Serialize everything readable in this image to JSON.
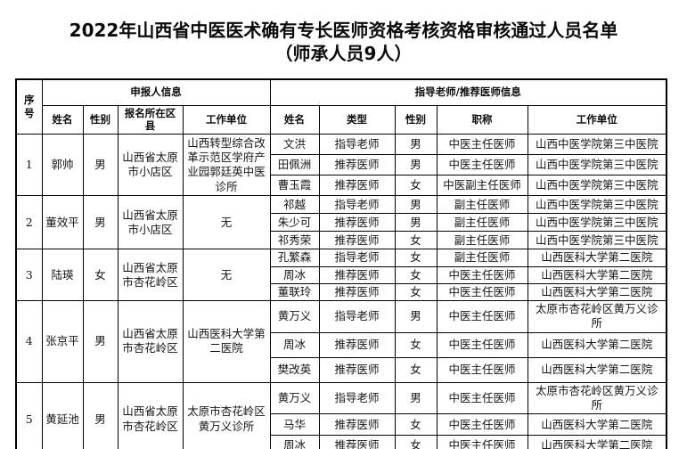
{
  "page": {
    "title_line1": "2022年山西省中医医术确有专长医师资格考核资格审核通过人员名单",
    "title_line2": "（师承人员9人）"
  },
  "table": {
    "headers": {
      "index": "序号",
      "applicant_group": "申报人信息",
      "mentor_group": "指导老师/推荐医师信息",
      "applicant_name": "姓名",
      "applicant_gender": "性别",
      "applicant_district": "报名所在区县",
      "applicant_workplace": "工作单位",
      "mentor_name": "姓名",
      "mentor_type": "类型",
      "mentor_gender": "性别",
      "mentor_title": "职称",
      "mentor_workplace": "工作单位"
    },
    "people": [
      {
        "index": "1",
        "name": "郭帅",
        "gender": "男",
        "district": "山西省太原市小店区",
        "workplace": "山西转型综合改革示范区学府产业园郭廷英中医诊所",
        "mentors": [
          {
            "name": "文洪",
            "type": "指导老师",
            "gender": "男",
            "title": "中医主任医师",
            "workplace": "山西中医学院第三中医院"
          },
          {
            "name": "田佩洲",
            "type": "推荐医师",
            "gender": "男",
            "title": "中医主任医师",
            "workplace": "山西中医学院第三中医院"
          },
          {
            "name": "曹玉霞",
            "type": "推荐医师",
            "gender": "女",
            "title": "中医副主任医师",
            "workplace": "山西中医学院第三中医院"
          }
        ]
      },
      {
        "index": "2",
        "name": "董效平",
        "gender": "男",
        "district": "山西省太原市小店区",
        "workplace": "无",
        "mentors": [
          {
            "name": "祁越",
            "type": "指导老师",
            "gender": "男",
            "title": "副主任医师",
            "workplace": "山西中医学院第三中医院"
          },
          {
            "name": "朱少可",
            "type": "推荐医师",
            "gender": "男",
            "title": "副主任医师",
            "workplace": "山西中医学院第三中医院"
          },
          {
            "name": "祁秀荣",
            "type": "推荐医师",
            "gender": "女",
            "title": "副主任医师",
            "workplace": "山西中医学院第三中医院"
          }
        ]
      },
      {
        "index": "3",
        "name": "陆瑛",
        "gender": "女",
        "district": "山西省太原市杏花岭区",
        "workplace": "无",
        "mentors": [
          {
            "name": "孔繁森",
            "type": "指导老师",
            "gender": "女",
            "title": "副主任医师",
            "workplace": "山西医科大学第二医院"
          },
          {
            "name": "周冰",
            "type": "推荐医师",
            "gender": "女",
            "title": "中医主任医师",
            "workplace": "山西医科大学第二医院"
          },
          {
            "name": "董联玲",
            "type": "推荐医师",
            "gender": "女",
            "title": "中医主任医师",
            "workplace": "山西医科大学第二医院"
          }
        ]
      },
      {
        "index": "4",
        "name": "张京平",
        "gender": "男",
        "district": "山西省太原市杏花岭区",
        "workplace": "山西医科大学第二医院",
        "mentors": [
          {
            "name": "黄万义",
            "type": "指导老师",
            "gender": "男",
            "title": "中医主任医师",
            "workplace": "太原市杏花岭区黄万义诊所"
          },
          {
            "name": "周冰",
            "type": "推荐医师",
            "gender": "女",
            "title": "中医主任医师",
            "workplace": "山西医科大学第二医院"
          },
          {
            "name": "樊改英",
            "type": "推荐医师",
            "gender": "女",
            "title": "中医主任医师",
            "workplace": "山西医科大学第二医院"
          }
        ]
      },
      {
        "index": "5",
        "name": "黄延池",
        "gender": "男",
        "district": "山西省太原市杏花岭区",
        "workplace": "太原市杏花岭区黄万义诊所",
        "mentors": [
          {
            "name": "黄万义",
            "type": "指导老师",
            "gender": "男",
            "title": "中医主任医师",
            "workplace": "太原市杏花岭区黄万义诊所"
          },
          {
            "name": "马华",
            "type": "推荐医师",
            "gender": "女",
            "title": "中医主任医师",
            "workplace": "山西医科大学第二医院"
          },
          {
            "name": "周冰",
            "type": "推荐医师",
            "gender": "女",
            "title": "中医主任医师",
            "workplace": "山西医科大学第二医院"
          }
        ]
      }
    ]
  }
}
